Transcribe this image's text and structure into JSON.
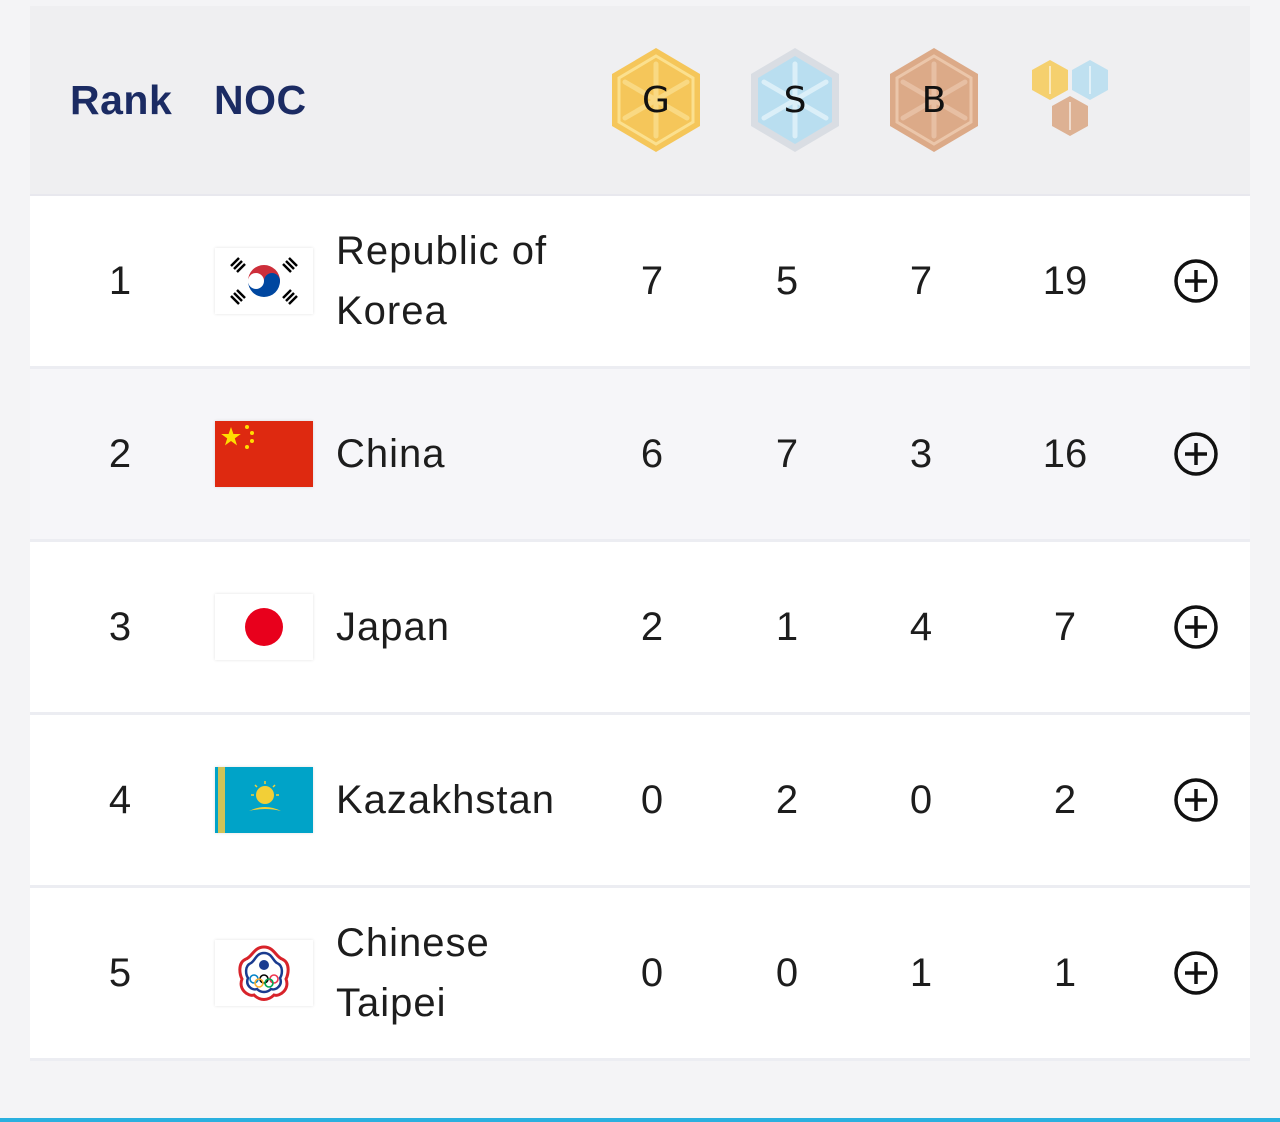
{
  "header": {
    "rank_label": "Rank",
    "noc_label": "NOC",
    "gold_label": "G",
    "silver_label": "S",
    "bronze_label": "B",
    "total_icon": "medal-total-icon"
  },
  "colors": {
    "header_text": "#1b2b63",
    "gold": "#f2c55c",
    "silver": "#b8dcef",
    "bronze": "#d9a98a",
    "accent_line": "#2ab0df"
  },
  "rows": [
    {
      "rank": "1",
      "noc": "Republic of Korea",
      "flag": "korea-flag",
      "gold": "7",
      "silver": "5",
      "bronze": "7",
      "total": "19"
    },
    {
      "rank": "2",
      "noc": "China",
      "flag": "china-flag",
      "gold": "6",
      "silver": "7",
      "bronze": "3",
      "total": "16"
    },
    {
      "rank": "3",
      "noc": "Japan",
      "flag": "japan-flag",
      "gold": "2",
      "silver": "1",
      "bronze": "4",
      "total": "7"
    },
    {
      "rank": "4",
      "noc": "Kazakhstan",
      "flag": "kazakhstan-flag",
      "gold": "0",
      "silver": "2",
      "bronze": "0",
      "total": "2"
    },
    {
      "rank": "5",
      "noc": "Chinese Taipei",
      "flag": "chinese-taipei-flag",
      "gold": "0",
      "silver": "0",
      "bronze": "1",
      "total": "1"
    }
  ]
}
